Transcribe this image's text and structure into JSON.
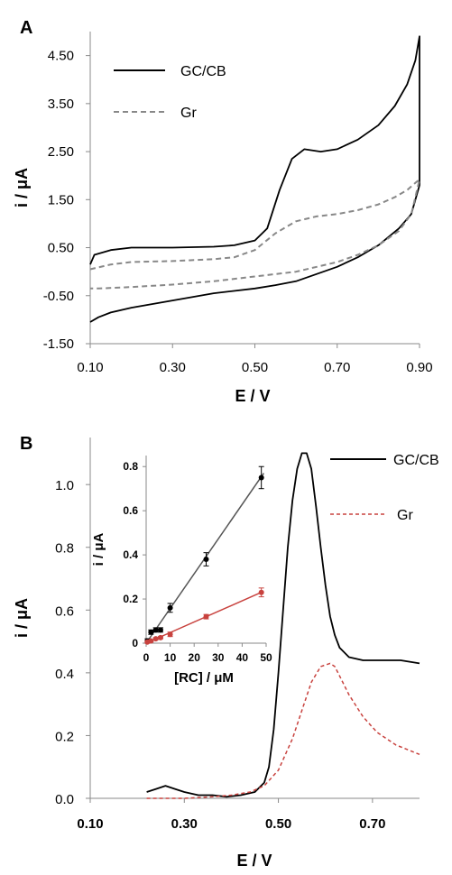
{
  "chart_data": [
    {
      "panel": "A",
      "type": "line",
      "xlabel": "E / V",
      "ylabel": "i / μA",
      "xlim": [
        0.1,
        0.9
      ],
      "ylim": [
        -1.5,
        5.0
      ],
      "xticks": [
        "0.10",
        "0.30",
        "0.50",
        "0.70",
        "0.90"
      ],
      "yticks": [
        "4.50",
        "3.50",
        "2.50",
        "1.50",
        "0.50",
        "-0.50",
        "-1.50"
      ],
      "legend": {
        "position": "top-left"
      },
      "series": [
        {
          "name": "GC/CB",
          "style": "solid",
          "color": "#000000",
          "x": [
            0.1,
            0.11,
            0.15,
            0.2,
            0.3,
            0.4,
            0.45,
            0.5,
            0.53,
            0.56,
            0.59,
            0.62,
            0.66,
            0.7,
            0.75,
            0.8,
            0.84,
            0.87,
            0.89,
            0.9,
            0.9,
            0.88,
            0.85,
            0.8,
            0.75,
            0.7,
            0.65,
            0.6,
            0.55,
            0.5,
            0.4,
            0.3,
            0.2,
            0.15,
            0.12,
            0.1
          ],
          "y": [
            0.15,
            0.35,
            0.45,
            0.5,
            0.5,
            0.52,
            0.55,
            0.65,
            0.9,
            1.7,
            2.35,
            2.55,
            2.5,
            2.55,
            2.75,
            3.05,
            3.45,
            3.9,
            4.4,
            4.9,
            1.8,
            1.2,
            0.9,
            0.55,
            0.3,
            0.1,
            -0.05,
            -0.2,
            -0.28,
            -0.35,
            -0.45,
            -0.6,
            -0.75,
            -0.85,
            -0.95,
            -1.05
          ]
        },
        {
          "name": "Gr",
          "style": "dashed",
          "color": "#888888",
          "x": [
            0.1,
            0.15,
            0.2,
            0.3,
            0.4,
            0.45,
            0.5,
            0.55,
            0.6,
            0.65,
            0.7,
            0.75,
            0.8,
            0.84,
            0.87,
            0.89,
            0.9,
            0.88,
            0.85,
            0.8,
            0.75,
            0.7,
            0.6,
            0.5,
            0.4,
            0.3,
            0.2,
            0.12,
            0.1
          ],
          "y": [
            0.05,
            0.15,
            0.2,
            0.22,
            0.26,
            0.3,
            0.45,
            0.8,
            1.05,
            1.15,
            1.2,
            1.28,
            1.4,
            1.55,
            1.7,
            1.85,
            1.92,
            1.2,
            0.85,
            0.55,
            0.35,
            0.2,
            0.0,
            -0.1,
            -0.2,
            -0.27,
            -0.32,
            -0.35,
            -0.35
          ]
        }
      ]
    },
    {
      "panel": "B",
      "type": "line",
      "xlabel": "E / V",
      "ylabel": "i / μA",
      "xlim": [
        0.1,
        0.8
      ],
      "ylim": [
        0.0,
        1.15
      ],
      "xticks": [
        "0.10",
        "0.30",
        "0.50",
        "0.70"
      ],
      "yticks": [
        "1.0",
        "0.8",
        "0.6",
        "0.4",
        "0.2",
        "0.0"
      ],
      "legend": {
        "position": "top-right"
      },
      "series": [
        {
          "name": "GC/CB",
          "style": "solid",
          "color": "#000000",
          "x": [
            0.22,
            0.24,
            0.26,
            0.28,
            0.3,
            0.33,
            0.36,
            0.39,
            0.42,
            0.45,
            0.47,
            0.48,
            0.49,
            0.5,
            0.51,
            0.52,
            0.53,
            0.54,
            0.55,
            0.56,
            0.57,
            0.58,
            0.59,
            0.6,
            0.61,
            0.62,
            0.63,
            0.65,
            0.68,
            0.72,
            0.76,
            0.8
          ],
          "y": [
            0.02,
            0.03,
            0.04,
            0.03,
            0.02,
            0.01,
            0.01,
            0.005,
            0.01,
            0.02,
            0.05,
            0.1,
            0.22,
            0.4,
            0.6,
            0.8,
            0.95,
            1.05,
            1.1,
            1.1,
            1.05,
            0.93,
            0.8,
            0.68,
            0.58,
            0.52,
            0.48,
            0.45,
            0.44,
            0.44,
            0.44,
            0.43
          ]
        },
        {
          "name": "Gr",
          "style": "dashed",
          "color": "#c8423e",
          "x": [
            0.22,
            0.3,
            0.36,
            0.4,
            0.44,
            0.47,
            0.5,
            0.53,
            0.55,
            0.57,
            0.59,
            0.61,
            0.62,
            0.63,
            0.65,
            0.68,
            0.71,
            0.75,
            0.8
          ],
          "y": [
            0.0,
            0.0,
            0.005,
            0.01,
            0.02,
            0.04,
            0.09,
            0.19,
            0.28,
            0.37,
            0.42,
            0.43,
            0.42,
            0.39,
            0.33,
            0.26,
            0.21,
            0.17,
            0.14
          ]
        }
      ],
      "inset": {
        "type": "scatter",
        "xlabel": "[RC] / μM",
        "ylabel": "i / μA",
        "xlim": [
          0,
          50
        ],
        "ylim": [
          0,
          0.85
        ],
        "xticks": [
          "0",
          "10",
          "20",
          "30",
          "40",
          "50"
        ],
        "yticks": [
          "0.8",
          "0.6",
          "0.4",
          "0.2",
          "0"
        ],
        "series": [
          {
            "color": "#000000",
            "fit_color": "#555555",
            "x": [
              0.5,
              2,
              4,
              6,
              10,
              25,
              48
            ],
            "y": [
              0.01,
              0.05,
              0.06,
              0.06,
              0.16,
              0.38,
              0.75
            ],
            "err": [
              0.01,
              0.01,
              0.01,
              0.01,
              0.02,
              0.03,
              0.05
            ],
            "fit": [
              [
                0,
                0.0
              ],
              [
                49,
                0.77
              ]
            ]
          },
          {
            "color": "#c8423e",
            "fit_color": "#c8423e",
            "x": [
              0.5,
              2,
              4,
              6,
              10,
              25,
              48
            ],
            "y": [
              0.005,
              0.01,
              0.02,
              0.025,
              0.04,
              0.12,
              0.23
            ],
            "err": [
              0.005,
              0.005,
              0.005,
              0.005,
              0.01,
              0.01,
              0.02
            ],
            "fit": [
              [
                0,
                0.0
              ],
              [
                49,
                0.235
              ]
            ]
          }
        ]
      }
    }
  ]
}
